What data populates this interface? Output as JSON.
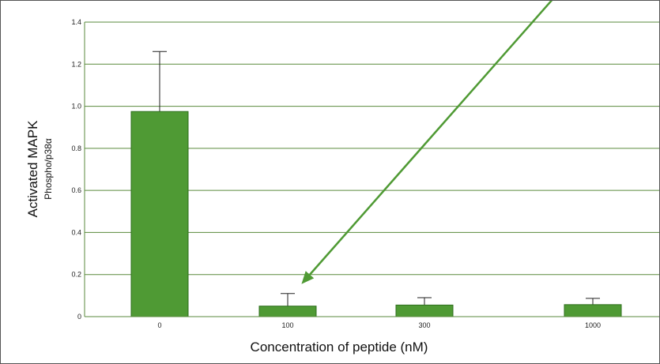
{
  "chart_data": {
    "type": "bar",
    "categories": [
      "0",
      "100",
      "300",
      "1000"
    ],
    "values": [
      0.975,
      0.05,
      0.055,
      0.057
    ],
    "error_upper": [
      1.26,
      0.11,
      0.09,
      0.087
    ],
    "title": "",
    "xlabel": "Concentration of peptide (nM)",
    "ylabel": "Activated MAPK",
    "ylabel_sub": "Phospho/p38α",
    "ylim": [
      0,
      1.4
    ],
    "yticks": [
      "0",
      "0.2",
      "0.4",
      "0.6",
      "0.8",
      "1.0",
      "1.2",
      "1.4"
    ],
    "grid": true,
    "annotation": "arrow pointing to 100 nM bar",
    "colors": {
      "bar": "#4f9a34",
      "bar_edge": "#2e6e1c",
      "grid": "#5a8a3c",
      "arrow": "#4f9a34"
    }
  }
}
